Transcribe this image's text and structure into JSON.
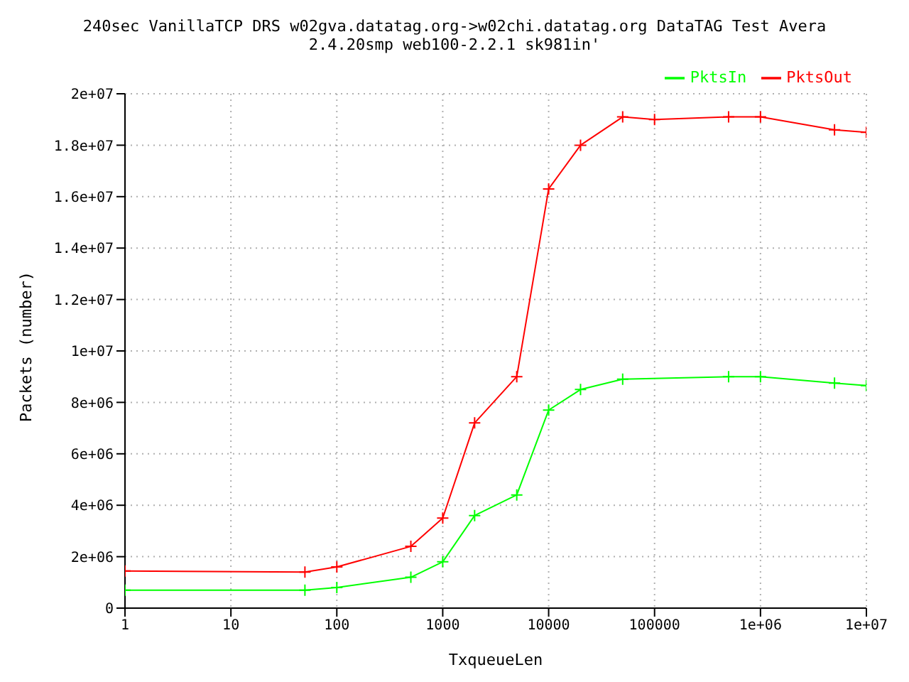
{
  "chart_data": {
    "type": "line",
    "title": "240sec VanillaTCP DRS w02gva.datatag.org->w02chi.datatag.org DataTAG Test Avera",
    "subtitle": "2.4.20smp web100-2.2.1 sk981in'",
    "xlabel": "TxqueueLen",
    "ylabel": "Packets (number)",
    "log": "x",
    "xlim": [
      1,
      10000000
    ],
    "xticks": [
      1,
      10,
      100,
      1000,
      10000,
      100000,
      {
        "value": 1000000,
        "label": "1e+06"
      },
      {
        "value": 10000000,
        "label": "1e+07"
      }
    ],
    "ylim": [
      0,
      20000000
    ],
    "yticks": [
      0,
      {
        "value": 2000000,
        "label": "2e+06"
      },
      {
        "value": 4000000,
        "label": "4e+06"
      },
      {
        "value": 6000000,
        "label": "6e+06"
      },
      {
        "value": 8000000,
        "label": "8e+06"
      },
      {
        "value": 10000000,
        "label": "1e+07"
      },
      {
        "value": 12000000,
        "label": "1.2e+07"
      },
      {
        "value": 14000000,
        "label": "1.4e+07"
      },
      {
        "value": 16000000,
        "label": "1.6e+07"
      },
      {
        "value": 18000000,
        "label": "1.8e+07"
      },
      {
        "value": 20000000,
        "label": "2e+07"
      }
    ],
    "grid": true,
    "legend": "top right",
    "marker": "cross",
    "series": [
      {
        "name": "PktsOut",
        "color": "#ff0000",
        "x": [
          1,
          50,
          100,
          500,
          1000,
          2000,
          5000,
          10000,
          20000,
          50000,
          100000,
          500000,
          1000000,
          5000000,
          10000000
        ],
        "values": [
          1440000,
          1400000,
          1600000,
          2400000,
          3500000,
          7200000,
          9000000,
          16300000,
          18000000,
          19100000,
          19000000,
          19100000,
          19100000,
          18600000,
          18500000
        ]
      },
      {
        "name": "PktsIn",
        "color": "#00ff00",
        "x": [
          1,
          50,
          100,
          500,
          1000,
          2000,
          5000,
          10000,
          20000,
          50000,
          500000,
          1000000,
          5000000,
          10000000
        ],
        "values": [
          700000,
          700000,
          800000,
          1200000,
          1800000,
          3600000,
          4400000,
          7700000,
          8500000,
          8900000,
          9000000,
          9000000,
          8750000,
          8650000
        ]
      }
    ]
  }
}
